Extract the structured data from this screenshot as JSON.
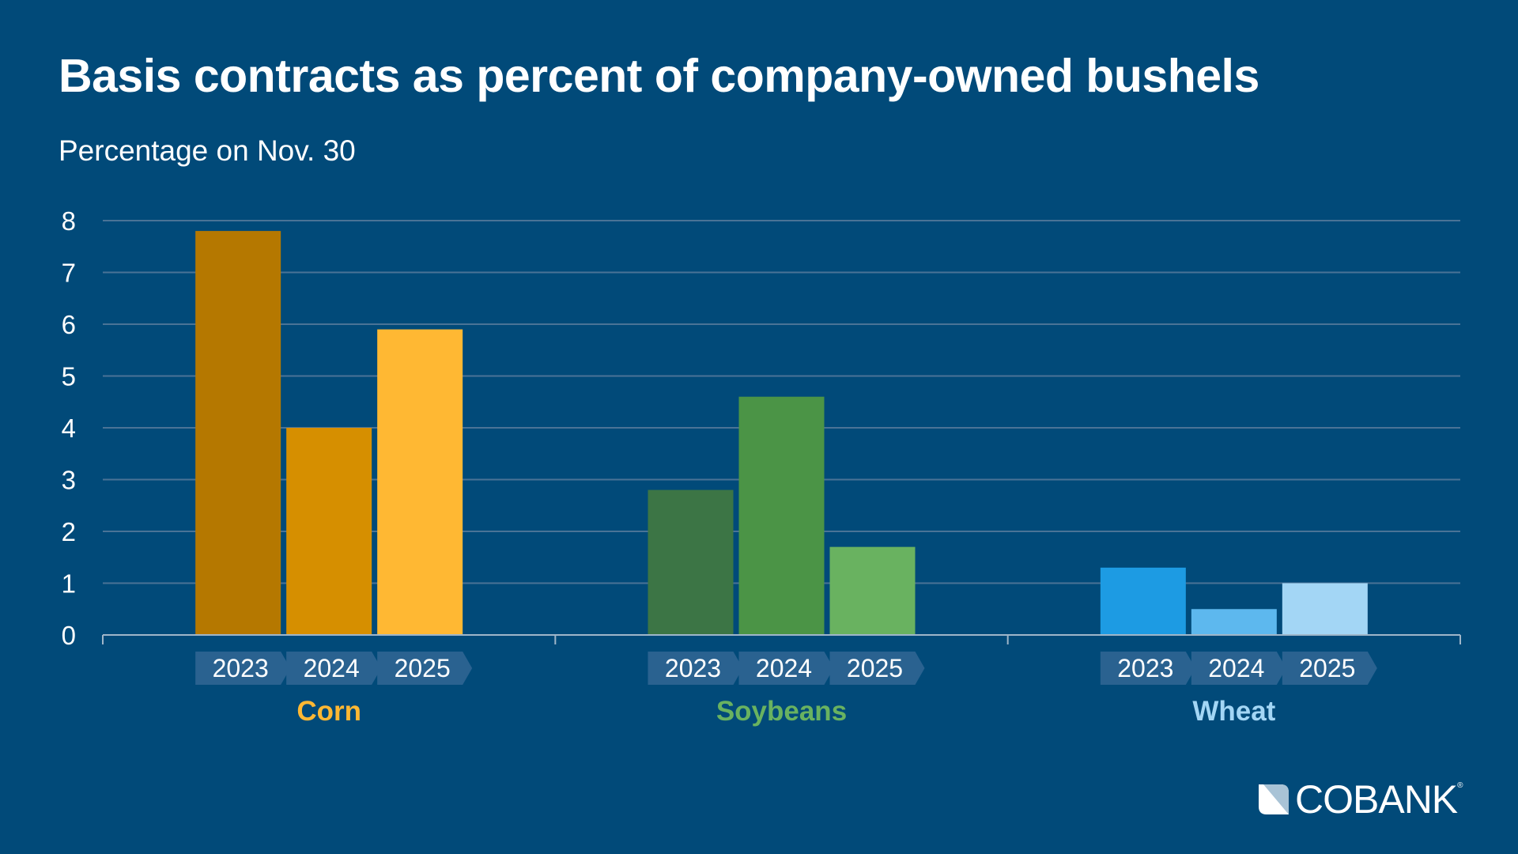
{
  "chart_data": {
    "type": "bar",
    "title": "Basis contracts as percent of company-owned bushels",
    "subtitle": "Percentage on Nov. 30",
    "ylim": [
      0,
      8
    ],
    "yticks": [
      "0",
      "1",
      "2",
      "3",
      "4",
      "5",
      "6",
      "7",
      "8"
    ],
    "grid": true,
    "groups": [
      {
        "name": "Corn",
        "label_color": "#ffb833",
        "years": [
          "2023",
          "2024",
          "2025"
        ],
        "values": [
          7.8,
          4.0,
          5.9
        ],
        "colors": [
          "#b57800",
          "#d68f00",
          "#ffb833"
        ]
      },
      {
        "name": "Soybeans",
        "label_color": "#69b260",
        "years": [
          "2023",
          "2024",
          "2025"
        ],
        "values": [
          2.8,
          4.6,
          1.7
        ],
        "colors": [
          "#3c7545",
          "#4b9446",
          "#69b260"
        ]
      },
      {
        "name": "Wheat",
        "label_color": "#a3d6f5",
        "years": [
          "2023",
          "2024",
          "2025"
        ],
        "values": [
          1.3,
          0.5,
          1.0
        ],
        "colors": [
          "#1d9be3",
          "#5db8ee",
          "#a3d6f5"
        ]
      }
    ]
  },
  "logo": {
    "text": "COBANK",
    "registered": "®"
  },
  "colors": {
    "background": "#014a79",
    "grid": "#4a7396",
    "year_tab": "#2a6290"
  }
}
